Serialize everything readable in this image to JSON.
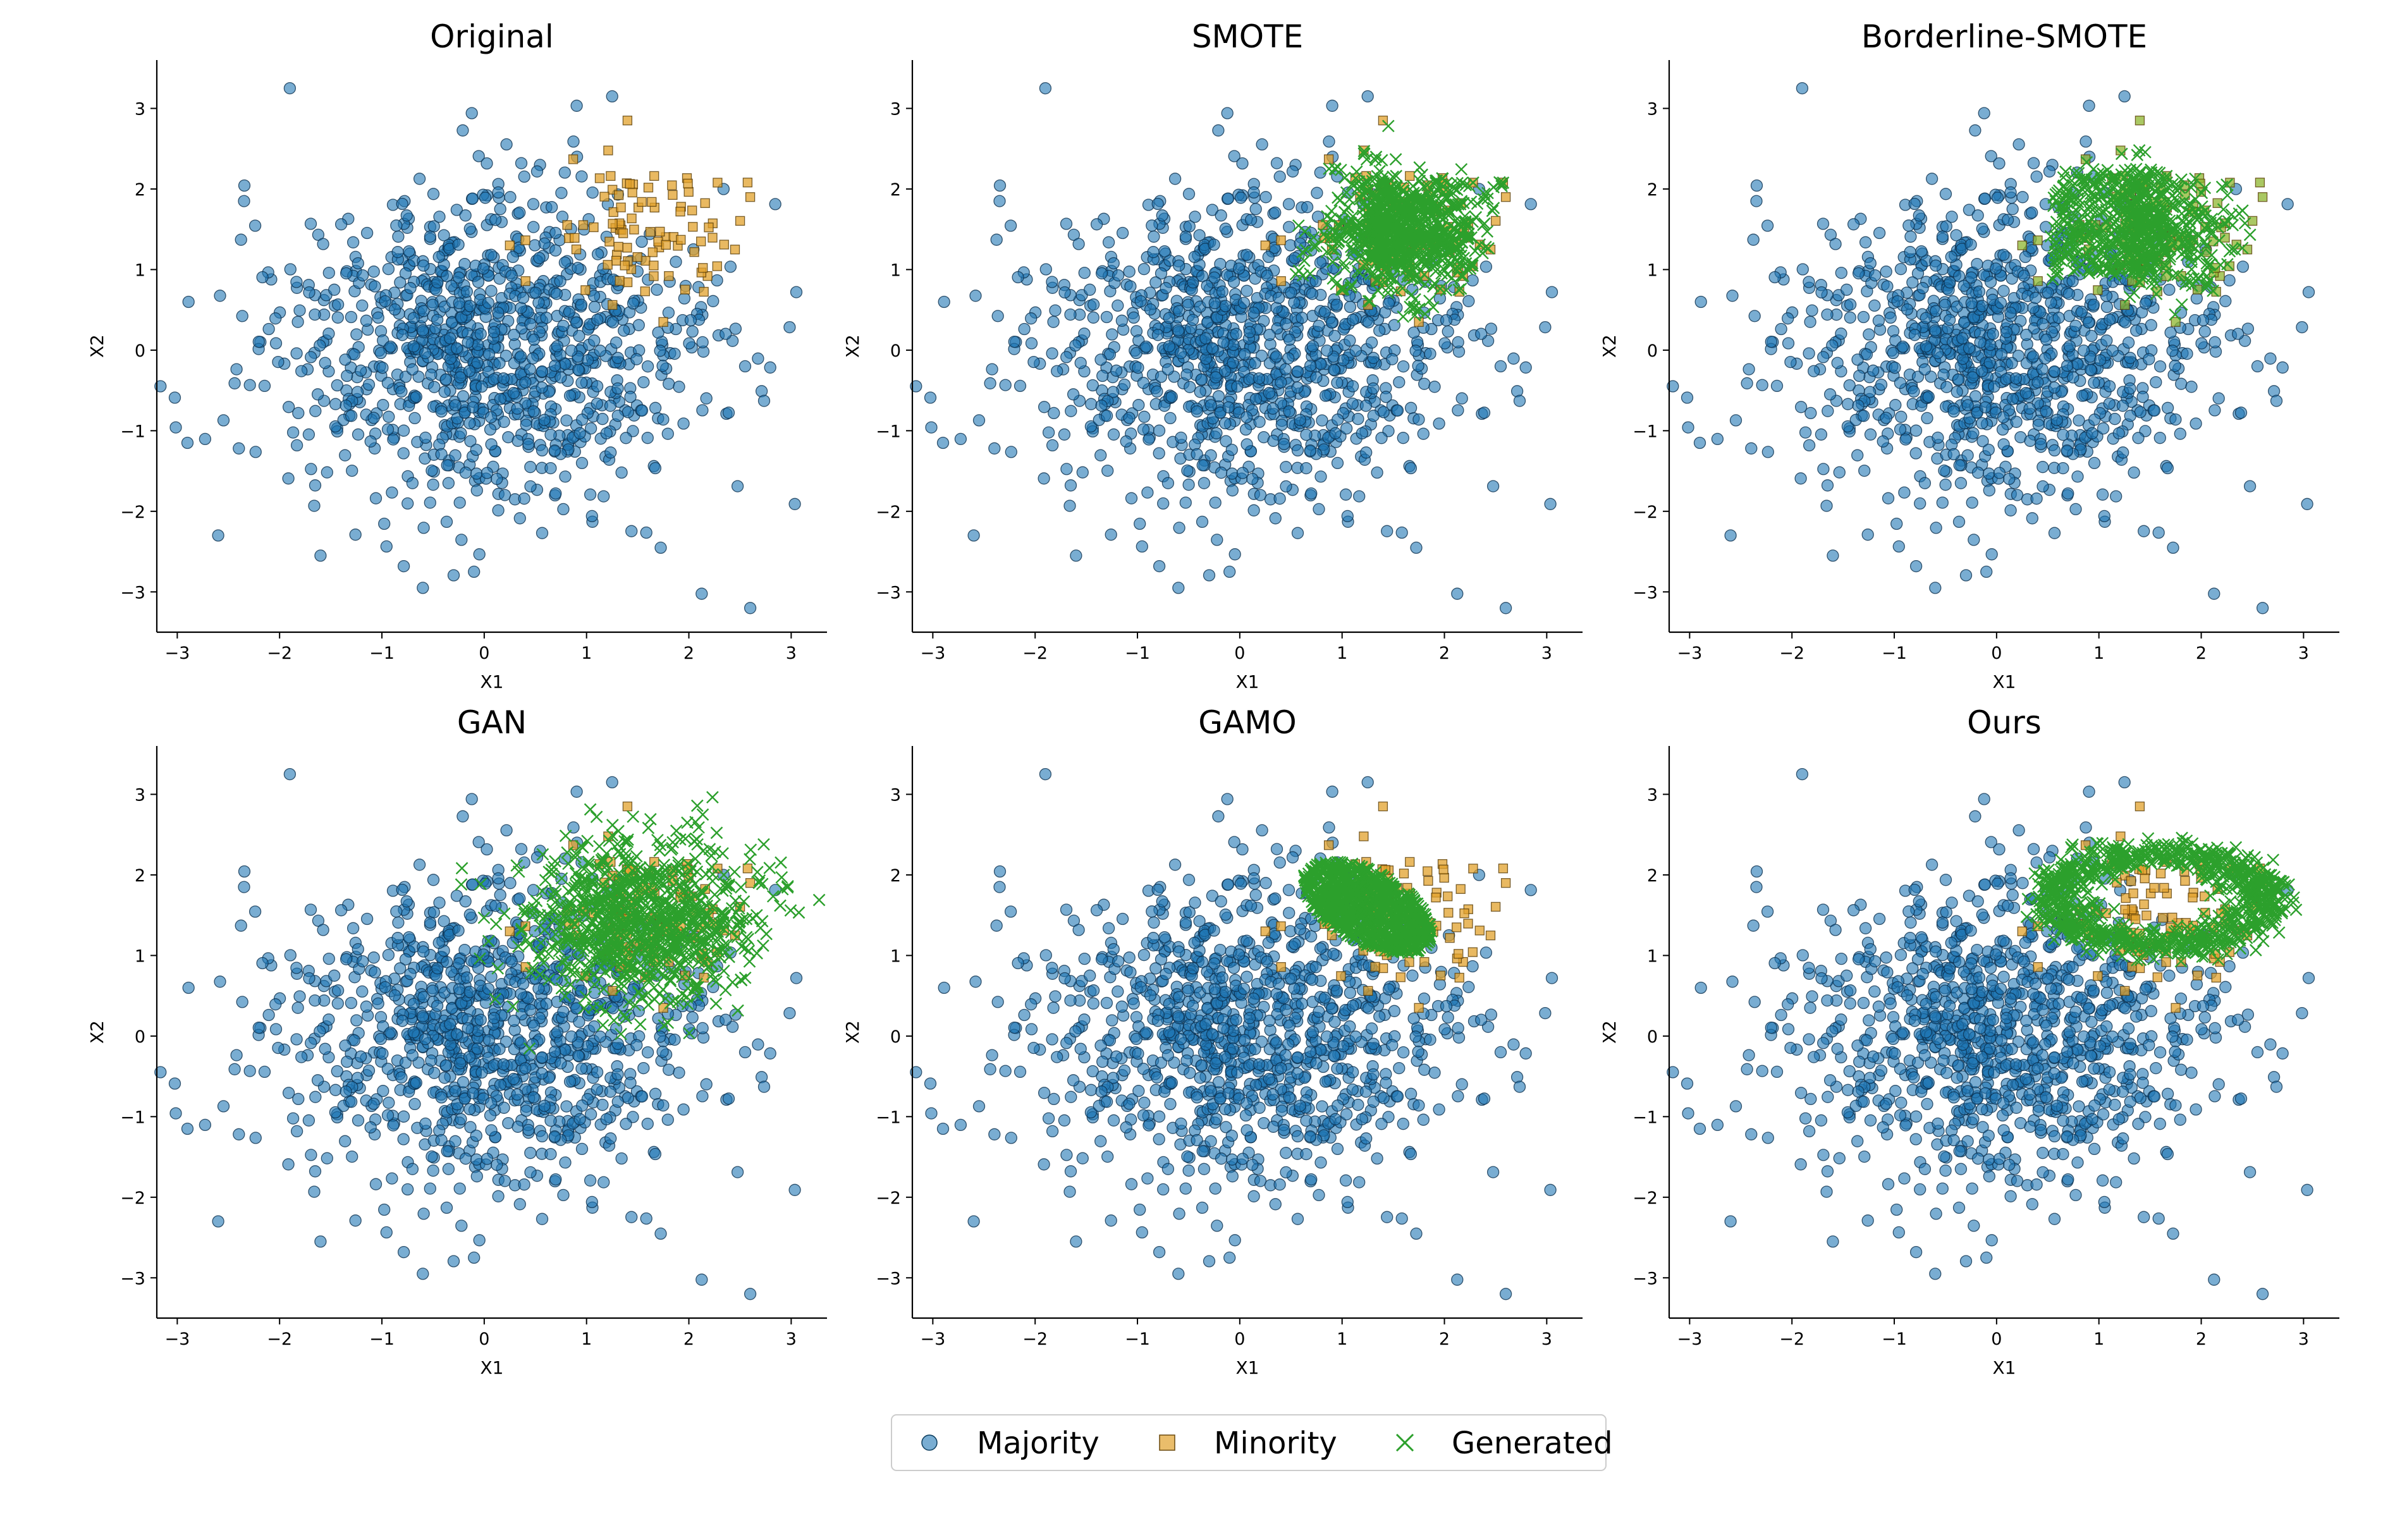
{
  "colors": {
    "majority": "#1f77b4",
    "minority": "#e1a12c",
    "generated": "#2ca02c",
    "minority_generated_fill": "#8db52f"
  },
  "legend": {
    "placement": "bottom-center",
    "items": [
      {
        "label": "Majority",
        "marker": "circle",
        "color": "#1f77b4"
      },
      {
        "label": "Minority",
        "marker": "square",
        "color": "#e1a12c"
      },
      {
        "label": "Generated",
        "marker": "x",
        "color": "#2ca02c"
      }
    ]
  },
  "chart_data": [
    {
      "type": "scatter",
      "title": "Original",
      "xlabel": "X1",
      "ylabel": "X2",
      "xlim": [
        -3.2,
        3.35
      ],
      "ylim": [
        -3.5,
        3.6
      ],
      "xticks": [
        "−3",
        "−2",
        "−1",
        "0",
        "1",
        "2",
        "3"
      ],
      "yticks": [
        "−3",
        "−2",
        "−1",
        "0",
        "1",
        "2",
        "3"
      ],
      "grid": false,
      "series": [
        {
          "name": "Majority",
          "marker": "circle",
          "distribution": {
            "n": 1000,
            "mean": [
              0,
              0
            ],
            "std": [
              1.05,
              1.0
            ]
          },
          "outliers": [
            [
              -1.9,
              3.25
            ],
            [
              1.25,
              3.15
            ],
            [
              -2.9,
              -1.15
            ],
            [
              -2.6,
              -2.3
            ],
            [
              2.6,
              -3.2
            ],
            [
              3.05,
              0.72
            ],
            [
              -0.6,
              -2.95
            ],
            [
              -0.1,
              -2.75
            ],
            [
              -1.6,
              -2.55
            ],
            [
              2.55,
              -0.2
            ]
          ]
        },
        {
          "name": "Minority",
          "marker": "square",
          "distribution": {
            "n": 90,
            "mean": [
              1.6,
              1.55
            ],
            "std": [
              0.45,
              0.45
            ]
          },
          "outliers": [
            [
              1.4,
              2.85
            ],
            [
              0.25,
              1.3
            ],
            [
              0.9,
              1.25
            ],
            [
              1.75,
              0.35
            ],
            [
              2.6,
              1.9
            ]
          ]
        }
      ]
    },
    {
      "type": "scatter",
      "title": "SMOTE",
      "xlabel": "X1",
      "ylabel": "X2",
      "xlim": [
        -3.2,
        3.35
      ],
      "ylim": [
        -3.5,
        3.6
      ],
      "xticks": [
        "−3",
        "−2",
        "−1",
        "0",
        "1",
        "2",
        "3"
      ],
      "yticks": [
        "−3",
        "−2",
        "−1",
        "0",
        "1",
        "2",
        "3"
      ],
      "grid": false,
      "series": [
        {
          "name": "Majority",
          "marker": "circle",
          "distribution": {
            "n": 1000,
            "mean": [
              0,
              0
            ],
            "std": [
              1.05,
              1.0
            ]
          }
        },
        {
          "name": "Minority",
          "marker": "square",
          "distribution": {
            "n": 90,
            "mean": [
              1.6,
              1.55
            ],
            "std": [
              0.45,
              0.45
            ]
          }
        },
        {
          "name": "Generated",
          "marker": "x",
          "distribution": {
            "region": "interpolation",
            "n": 900,
            "x": [
              0.5,
              2.6
            ],
            "y": [
              0.4,
              2.85
            ]
          }
        }
      ]
    },
    {
      "type": "scatter",
      "title": "Borderline-SMOTE",
      "xlabel": "X1",
      "ylabel": "X2",
      "xlim": [
        -3.2,
        3.35
      ],
      "ylim": [
        -3.5,
        3.6
      ],
      "xticks": [
        "−3",
        "−2",
        "−1",
        "0",
        "1",
        "2",
        "3"
      ],
      "yticks": [
        "−3",
        "−2",
        "−1",
        "0",
        "1",
        "2",
        "3"
      ],
      "grid": false,
      "series": [
        {
          "name": "Majority",
          "marker": "circle",
          "distribution": {
            "n": 1000,
            "mean": [
              0,
              0
            ],
            "std": [
              1.05,
              1.0
            ]
          }
        },
        {
          "name": "Minority",
          "marker": "square",
          "distribution": {
            "n": 90,
            "mean": [
              1.6,
              1.55
            ],
            "std": [
              0.45,
              0.45
            ]
          }
        },
        {
          "name": "Generated",
          "marker": "x",
          "distribution": {
            "region": "borderline",
            "n": 700,
            "x": [
              0.5,
              2.5
            ],
            "y": [
              0.35,
              2.85
            ]
          }
        }
      ]
    },
    {
      "type": "scatter",
      "title": "GAN",
      "xlabel": "X1",
      "ylabel": "X2",
      "xlim": [
        -3.2,
        3.35
      ],
      "ylim": [
        -3.5,
        3.6
      ],
      "xticks": [
        "−3",
        "−2",
        "−1",
        "0",
        "1",
        "2",
        "3"
      ],
      "yticks": [
        "−3",
        "−2",
        "−1",
        "0",
        "1",
        "2",
        "3"
      ],
      "grid": false,
      "series": [
        {
          "name": "Majority",
          "marker": "circle",
          "distribution": {
            "n": 1000,
            "mean": [
              0,
              0
            ],
            "std": [
              1.05,
              1.0
            ]
          }
        },
        {
          "name": "Minority",
          "marker": "square",
          "distribution": {
            "n": 90,
            "mean": [
              1.6,
              1.55
            ],
            "std": [
              0.45,
              0.45
            ]
          }
        },
        {
          "name": "Generated",
          "marker": "x",
          "distribution": {
            "region": "gaussian",
            "n": 900,
            "mean": [
              1.55,
              1.45
            ],
            "std": [
              0.55,
              0.5
            ]
          }
        }
      ]
    },
    {
      "type": "scatter",
      "title": "GAMO",
      "xlabel": "X1",
      "ylabel": "X2",
      "xlim": [
        -3.2,
        3.35
      ],
      "ylim": [
        -3.5,
        3.6
      ],
      "xticks": [
        "−3",
        "−2",
        "−1",
        "0",
        "1",
        "2",
        "3"
      ],
      "yticks": [
        "−3",
        "−2",
        "−1",
        "0",
        "1",
        "2",
        "3"
      ],
      "grid": false,
      "series": [
        {
          "name": "Majority",
          "marker": "circle",
          "distribution": {
            "n": 1000,
            "mean": [
              0,
              0
            ],
            "std": [
              1.05,
              1.0
            ]
          }
        },
        {
          "name": "Minority",
          "marker": "square",
          "distribution": {
            "n": 90,
            "mean": [
              1.6,
              1.55
            ],
            "std": [
              0.45,
              0.45
            ]
          }
        },
        {
          "name": "Generated",
          "marker": "x",
          "distribution": {
            "region": "ellipse",
            "n": 900,
            "center": [
              1.25,
              1.6
            ],
            "radii": [
              0.75,
              0.4
            ],
            "angle_deg": -40
          }
        }
      ]
    },
    {
      "type": "scatter",
      "title": "Ours",
      "xlabel": "X1",
      "ylabel": "X2",
      "xlim": [
        -3.2,
        3.35
      ],
      "ylim": [
        -3.5,
        3.6
      ],
      "xticks": [
        "−3",
        "−2",
        "−1",
        "0",
        "1",
        "2",
        "3"
      ],
      "yticks": [
        "−3",
        "−2",
        "−1",
        "0",
        "1",
        "2",
        "3"
      ],
      "grid": false,
      "series": [
        {
          "name": "Majority",
          "marker": "circle",
          "distribution": {
            "n": 1000,
            "mean": [
              0,
              0
            ],
            "std": [
              1.05,
              1.0
            ]
          }
        },
        {
          "name": "Minority",
          "marker": "square",
          "distribution": {
            "n": 90,
            "mean": [
              1.6,
              1.55
            ],
            "std": [
              0.45,
              0.45
            ]
          }
        },
        {
          "name": "Generated",
          "marker": "x",
          "distribution": {
            "region": "ring",
            "n": 900,
            "center": [
              1.6,
              1.7
            ],
            "radii": [
              1.2,
              0.65
            ]
          }
        }
      ]
    }
  ]
}
